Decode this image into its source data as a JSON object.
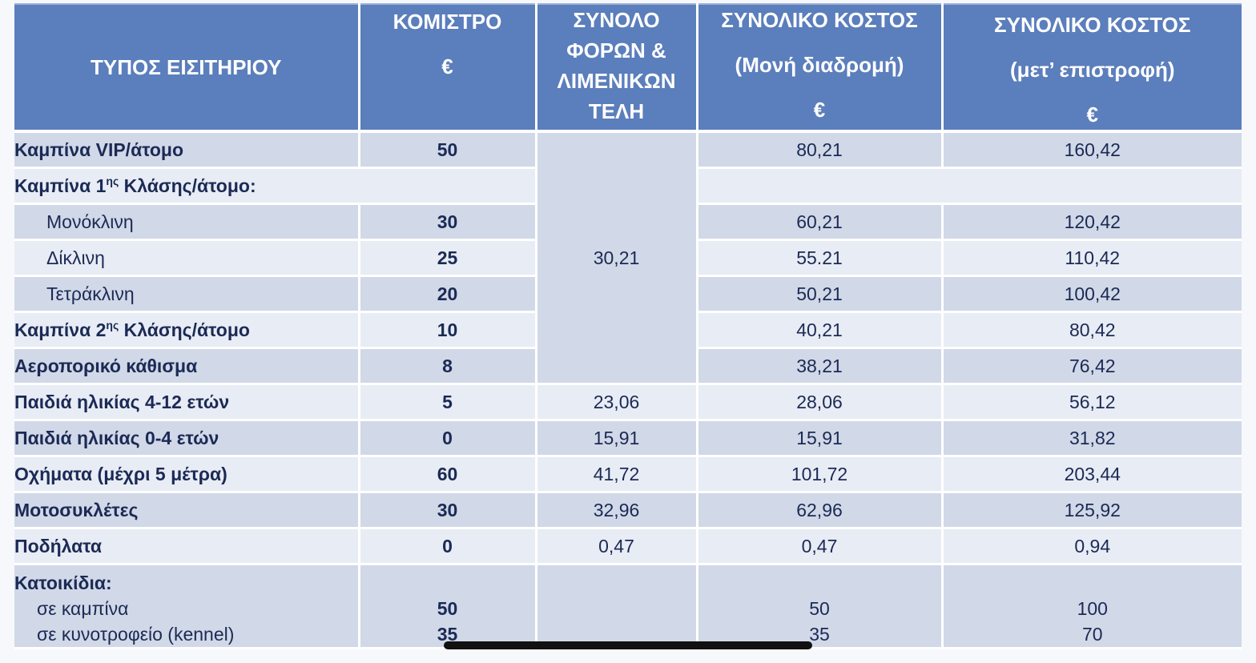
{
  "header": {
    "type": "ΤΥΠΟΣ ΕΙΣΙΤΗΡΙΟΥ",
    "fare": [
      "ΚΟΜΙΣΤΡΟ",
      "€"
    ],
    "taxes": [
      "ΣΥΝΟΛΟ",
      "ΦΟΡΩΝ &",
      "ΛΙΜΕΝΙΚΩΝ",
      "ΤΕΛΗ"
    ],
    "one_way": [
      "ΣΥΝΟΛΙΚΟ ΚΟΣΤΟΣ",
      "(Μονή διαδρομή)",
      "€"
    ],
    "return": [
      "ΣΥΝΟΛΙΚΟ ΚΟΣΤΟΣ",
      "(μετ’ επιστροφή)",
      "€"
    ]
  },
  "shared_taxes": "30,21",
  "rows": [
    {
      "label": "Καμπίνα VIP/άτομο",
      "fare": "50",
      "one_way": "80,21",
      "return": "160,42"
    },
    {
      "label_pre": "Καμπίνα 1",
      "label_sup": "ης",
      "label_post": " Κλάσης/άτομο:"
    },
    {
      "label": "Μονόκλινη",
      "fare": "30",
      "one_way": "60,21",
      "return": "120,42"
    },
    {
      "label": "Δίκλινη",
      "fare": "25",
      "one_way": "55.21",
      "return": "110,42"
    },
    {
      "label": "Τετράκλινη",
      "fare": "20",
      "one_way": "50,21",
      "return": "100,42"
    },
    {
      "label_pre": "Καμπίνα 2",
      "label_sup": "ης",
      "label_post": " Κλάσης/άτομο",
      "fare": "10",
      "one_way": "40,21",
      "return": "80,42"
    },
    {
      "label": "Αεροπορικό κάθισμα",
      "fare": "8",
      "one_way": "38,21",
      "return": "76,42"
    },
    {
      "label": "Παιδιά ηλικίας 4-12 ετών",
      "fare": "5",
      "taxes": "23,06",
      "one_way": "28,06",
      "return": "56,12"
    },
    {
      "label": "Παιδιά ηλικίας 0-4 ετών",
      "fare": "0",
      "taxes": "15,91",
      "one_way": "15,91",
      "return": "31,82"
    },
    {
      "label": "Οχήματα (μέχρι 5 μέτρα)",
      "fare": "60",
      "taxes": "41,72",
      "one_way": "101,72",
      "return": "203,44"
    },
    {
      "label": "Μοτοσυκλέτες",
      "fare": "30",
      "taxes": "32,96",
      "one_way": "62,96",
      "return": "125,92"
    },
    {
      "label": "Ποδήλατα",
      "fare": "0",
      "taxes": "0,47",
      "one_way": "0,47",
      "return": "0,94"
    }
  ],
  "pets": {
    "label": "Κατοικίδια:",
    "items": [
      {
        "label": "σε καμπίνα",
        "fare": "50",
        "one_way": "50",
        "return": "100"
      },
      {
        "label": "σε κυνοτροφείο (kennel)",
        "fare": "35",
        "one_way": "35",
        "return": "70"
      }
    ]
  }
}
